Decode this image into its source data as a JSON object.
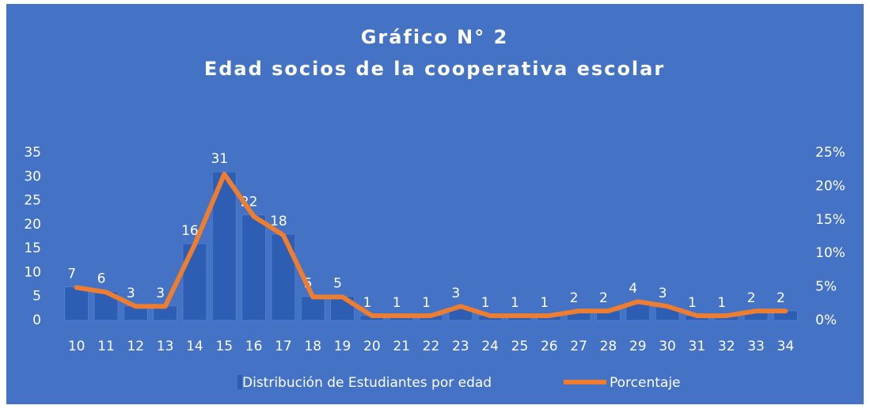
{
  "chart_data": {
    "type": "bar",
    "title": "Gráfico N° 2",
    "subtitle": "Edad socios de la cooperativa escolar",
    "categories": [
      "10",
      "11",
      "12",
      "13",
      "14",
      "15",
      "16",
      "17",
      "18",
      "19",
      "20",
      "21",
      "22",
      "23",
      "24",
      "25",
      "26",
      "27",
      "28",
      "29",
      "30",
      "31",
      "32",
      "33",
      "34"
    ],
    "series": [
      {
        "name": "Distribución de Estudiantes por edad",
        "color": "#2e5eb3",
        "type": "bar",
        "values": [
          7,
          6,
          3,
          3,
          16,
          31,
          22,
          18,
          5,
          5,
          1,
          1,
          1,
          3,
          1,
          1,
          1,
          2,
          2,
          4,
          3,
          1,
          1,
          2,
          2
        ]
      },
      {
        "name": "Porcentaje",
        "color": "#ed7d31",
        "type": "line",
        "axis": "y2",
        "values": [
          4.9,
          4.2,
          2.1,
          2.1,
          11.3,
          21.8,
          15.5,
          12.7,
          3.5,
          3.5,
          0.7,
          0.7,
          0.7,
          2.1,
          0.7,
          0.7,
          0.7,
          1.4,
          1.4,
          2.8,
          2.1,
          0.7,
          0.7,
          1.4,
          1.4
        ]
      }
    ],
    "ylim": [
      0,
      35
    ],
    "yticks": [
      0,
      5,
      10,
      15,
      20,
      25,
      30,
      35
    ],
    "y2lim": [
      0,
      25
    ],
    "y2ticks": [
      {
        "value": 0,
        "label": "0%"
      },
      {
        "value": 5,
        "label": "5%"
      },
      {
        "value": 10,
        "label": "10%"
      },
      {
        "value": 15,
        "label": "15%"
      },
      {
        "value": 20,
        "label": "20%"
      },
      {
        "value": 25,
        "label": "25%"
      }
    ],
    "background": "#4472c4",
    "legend": "bottom"
  }
}
